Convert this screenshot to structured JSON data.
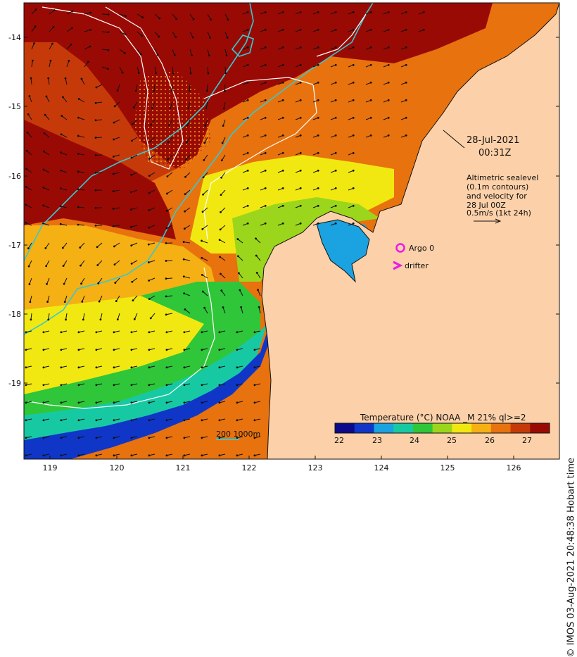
{
  "colors": {
    "land": "#fcd0a8",
    "coast": "#111111",
    "isobath": "#35c9d2",
    "contour": "#ffffff",
    "arrow": "#111111",
    "argo": "#e81ce8",
    "drifter": "#e81ce8",
    "sst_scale": [
      "#0b0a8a",
      "#1036c8",
      "#1ba2e0",
      "#17c9a3",
      "#2fc63a",
      "#9bd61c",
      "#f2e811",
      "#f5b014",
      "#e8720e",
      "#c63a0a",
      "#9a0a05"
    ]
  },
  "axes": {
    "x_ticks": [
      "119",
      "120",
      "121",
      "122",
      "123",
      "124",
      "125",
      "126"
    ],
    "y_ticks": [
      "-14",
      "-15",
      "-16",
      "-17",
      "-18",
      "-19"
    ]
  },
  "annotations": {
    "date": "28-Jul-2021",
    "time": "00:31Z",
    "sealevel_lines": [
      "Altimetric sealevel",
      "(0.1m contours)",
      "and velocity for",
      "28 Jul 00Z",
      "0.5m/s (1kt 24h)"
    ],
    "argo_label": "Argo 0",
    "drifter_label": "drifter",
    "isobath_label": "200  1000m"
  },
  "legend": {
    "title": "Temperature (°C) NOAA _M 21% ql>=2",
    "ticks": [
      "22",
      "23",
      "24",
      "25",
      "26",
      "27"
    ]
  },
  "copyright": "© IMOS 03-Aug-2021 20:48:38 Hobart time"
}
